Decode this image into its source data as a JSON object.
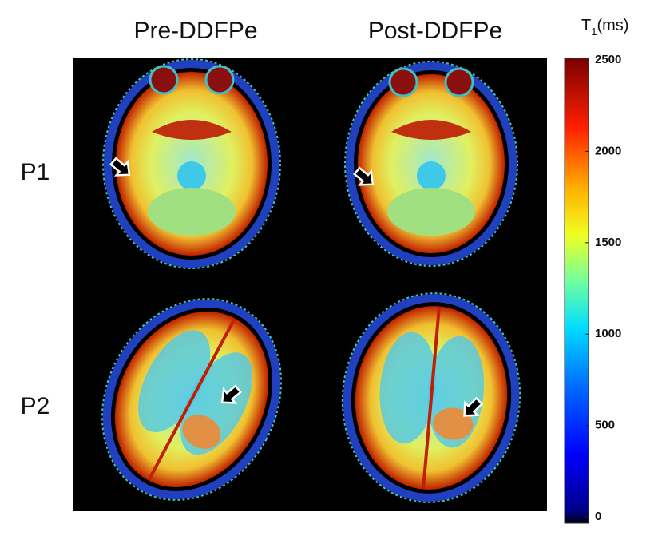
{
  "columns": [
    "Pre-DDFPe",
    "Post-DDFPe"
  ],
  "rows": [
    "P1",
    "P2"
  ],
  "colorbar": {
    "title": "T",
    "title_subscript": "1",
    "title_unit": "(ms)",
    "lim": [
      0,
      2500
    ],
    "ticks": [
      0,
      500,
      1000,
      1500,
      2000,
      2500
    ]
  }
}
